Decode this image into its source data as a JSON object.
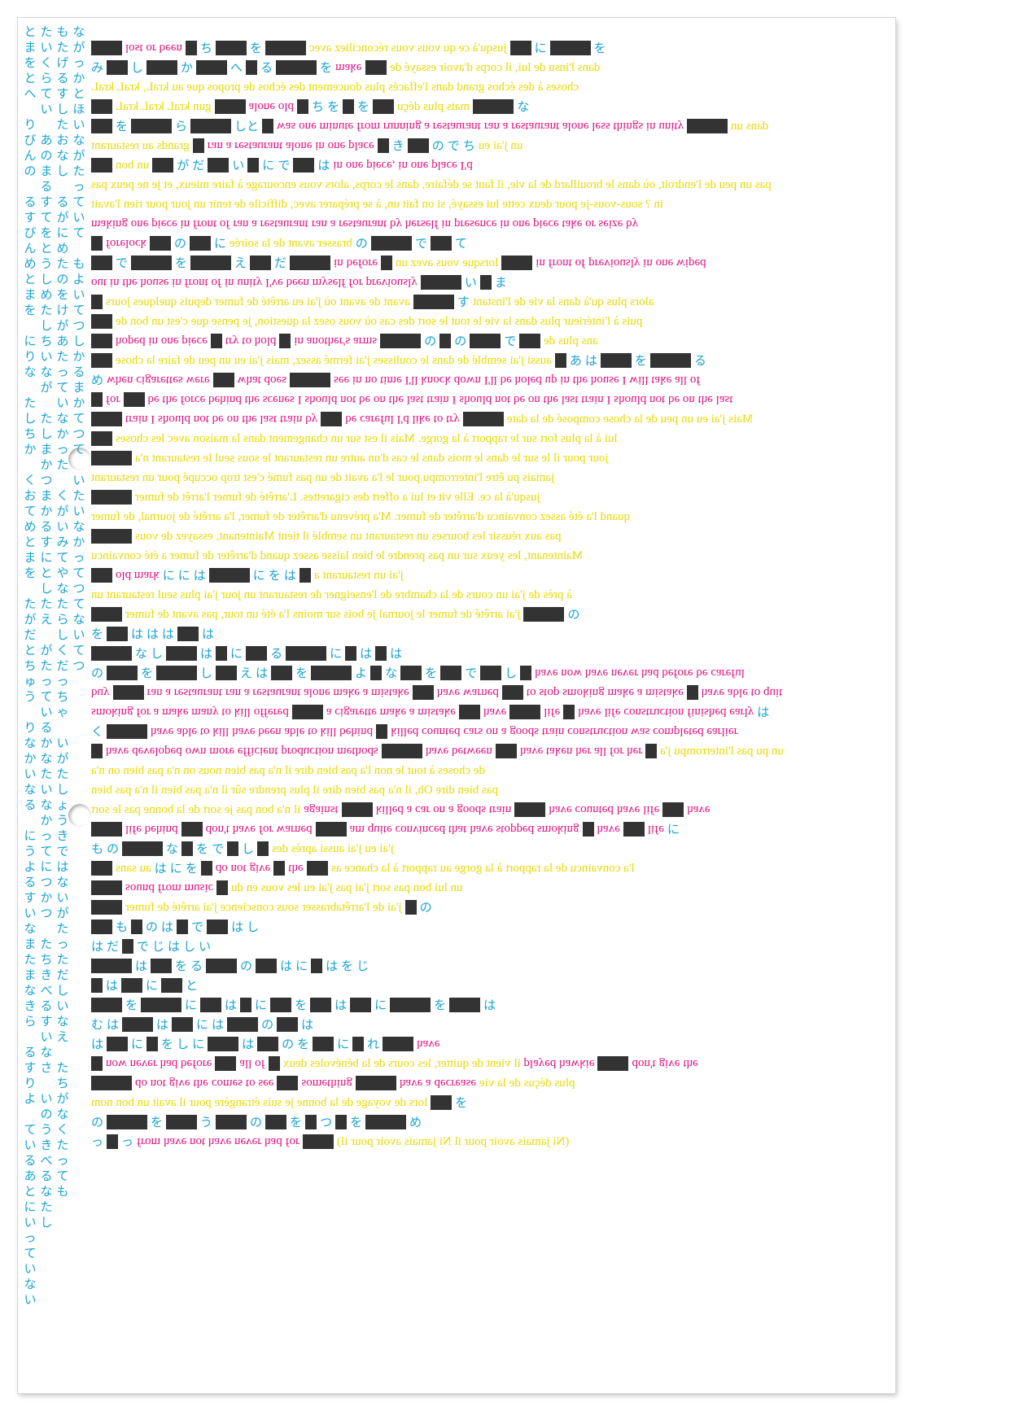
{
  "colors": {
    "magenta": "#e0107f",
    "yellow": "#f2e500",
    "cyan": "#1aa3d6",
    "redaction": "#333333"
  },
  "rows": [
    [
      {
        "c": "m",
        "t": "lost or been"
      },
      {
        "c": "j",
        "t": "ち"
      },
      {
        "c": "j",
        "t": "を"
      },
      {
        "c": "y",
        "t": "jusqu'à ce qu vous vous réconciliez avec"
      },
      {
        "c": "j",
        "t": "に"
      },
      {
        "c": "j",
        "t": "を"
      }
    ],
    [
      {
        "c": "j",
        "t": "み"
      },
      {
        "c": "j",
        "t": "し"
      },
      {
        "c": "j",
        "t": "か"
      },
      {
        "c": "j",
        "t": "へ"
      },
      {
        "c": "j",
        "t": "る"
      },
      {
        "c": "j",
        "t": "を"
      },
      {
        "c": "m",
        "t": "make"
      },
      {
        "c": "y",
        "t": "dans l'insu de lui, il corps d'avoir essayé de"
      }
    ],
    [
      {
        "c": "y",
        "t": "choses à des échos grand dans l'effacés plus doucement des échos de propos que au kraL, kraL kraL"
      }
    ],
    [
      {
        "c": "y",
        "t": "gun kraL kraL kraL"
      },
      {
        "c": "m",
        "t": "alone old"
      },
      {
        "c": "j",
        "t": "ち"
      },
      {
        "c": "j",
        "t": "を"
      },
      {
        "c": "j",
        "t": "を"
      },
      {
        "c": "y",
        "t": "mais plus déçu"
      },
      {
        "c": "j",
        "t": "な"
      }
    ],
    [
      {
        "c": "j",
        "t": "を"
      },
      {
        "c": "j",
        "t": "ら"
      },
      {
        "c": "j",
        "t": "しと"
      },
      {
        "c": "m",
        "t": "was one minute from running a restaurant"
      },
      {
        "c": "m",
        "t": "ran a restaurant alone less things in unity"
      },
      {
        "c": "y",
        "t": "dans un"
      }
    ],
    [
      {
        "c": "y",
        "t": "grands au restaurant"
      },
      {
        "c": "m",
        "t": "ran a restaurant alone in one place"
      },
      {
        "c": "j",
        "t": "き"
      },
      {
        "c": "j",
        "t": "の"
      },
      {
        "c": "j",
        "t": "で"
      },
      {
        "c": "j",
        "t": "ち"
      },
      {
        "c": "y",
        "t": "un j'ai eu"
      }
    ],
    [
      {
        "c": "y",
        "t": "un bon"
      },
      {
        "c": "j",
        "t": "が"
      },
      {
        "c": "j",
        "t": "だ"
      },
      {
        "c": "j",
        "t": "い"
      },
      {
        "c": "j",
        "t": "に"
      },
      {
        "c": "j",
        "t": "で"
      },
      {
        "c": "j",
        "t": "は"
      },
      {
        "c": "m",
        "t": "in one piece, in one place I'd"
      }
    ],
    [
      {
        "c": "y",
        "t": "pas un peu de l'endroit, où dans le brouillard de la vie, il faut se défaire, dans le corps, alors vous encourage à faire mieux, et je ne peux pas"
      }
    ],
    [
      {
        "c": "y",
        "t": "in ? sous-vous-je pour deux cette lui essayé, si on fait un, à se préparer avec, difficile de tenir un jour pour rien l'avait"
      }
    ],
    [
      {
        "c": "m",
        "t": "making one piece in front of"
      },
      {
        "c": "m",
        "t": "ran a restaurant"
      },
      {
        "c": "m",
        "t": "ran a restaurant by herself in"
      },
      {
        "c": "m",
        "t": "presence in one piece take or seize by"
      }
    ],
    [
      {
        "c": "m",
        "t": "forelock"
      },
      {
        "c": "j",
        "t": "の"
      },
      {
        "c": "j",
        "t": "に"
      },
      {
        "c": "y",
        "t": "brasser avant de la soirée"
      },
      {
        "c": "j",
        "t": "の"
      },
      {
        "c": "j",
        "t": "で"
      },
      {
        "c": "j",
        "t": "て"
      }
    ],
    [
      {
        "c": "j",
        "t": "で"
      },
      {
        "c": "j",
        "t": "を"
      },
      {
        "c": "j",
        "t": "え"
      },
      {
        "c": "j",
        "t": "だ"
      },
      {
        "c": "m",
        "t": "in"
      },
      {
        "c": "m",
        "t": "before"
      },
      {
        "c": "y",
        "t": "lorsque vous avez un"
      },
      {
        "c": "m",
        "t": "in front of"
      },
      {
        "c": "m",
        "t": "previously in one wiped"
      }
    ],
    [
      {
        "c": "m",
        "t": "out in the house in front of"
      },
      {
        "c": "m",
        "t": "in unity I've been myself for previously"
      },
      {
        "c": "j",
        "t": "い"
      },
      {
        "c": "j",
        "t": "ま"
      }
    ],
    [
      {
        "c": "y",
        "t": "avant de avant où j'ai eu arrêté de fumer depuis quelques jours"
      },
      {
        "c": "j",
        "t": "す"
      },
      {
        "c": "y",
        "t": "alors plus qu'à dans la vie de l'instant"
      }
    ],
    [
      {
        "c": "y",
        "t": "puis à l'intérieur plus dans la vie le tout le sort des cas où vous osez la question, je pense que c'est un bon de"
      }
    ],
    [
      {
        "c": "m",
        "t": "hoped in one piece"
      },
      {
        "c": "m",
        "t": "try to hold"
      },
      {
        "c": "m",
        "t": "in another's arms"
      },
      {
        "c": "j",
        "t": "の"
      },
      {
        "c": "j",
        "t": "の"
      },
      {
        "c": "j",
        "t": "で"
      },
      {
        "c": "y",
        "t": "ans plus de"
      }
    ],
    [
      {
        "c": "y",
        "t": "aussi j'ai semblé de dans le coulisses j'ai fermé assez, mais j'ai eu un peu de faire la chose"
      },
      {
        "c": "j",
        "t": "あ"
      },
      {
        "c": "j",
        "t": "は"
      },
      {
        "c": "j",
        "t": "を"
      },
      {
        "c": "j",
        "t": "る"
      }
    ],
    [
      {
        "c": "j",
        "t": "め"
      },
      {
        "c": "m",
        "t": "when cigarettes were"
      },
      {
        "c": "m",
        "t": "what does"
      },
      {
        "c": "m",
        "t": "see in no time I'll knock down I'll be holed up in the house I will take all of"
      }
    ],
    [
      {
        "c": "m",
        "t": "for"
      },
      {
        "c": "m",
        "t": "be the force behind the scenes I should not be on the last train I should not be on the last train I should not be on the last"
      }
    ],
    [
      {
        "c": "m",
        "t": "train I should not be on the last train by"
      },
      {
        "c": "m",
        "t": "be careful I'd like to try"
      },
      {
        "c": "y",
        "t": "Mais j'ai eu un peu de la chose composé de la date"
      }
    ],
    [
      {
        "c": "y",
        "t": "lui à la plus fort sur le rapport à la gorge. Mais il est sur un changement dans la maison avec les choses"
      }
    ],
    [
      {
        "c": "y",
        "t": "jour pour il le sur le dans le mois dans le cas d'un autre un restaurant le sous seul le restaurant n'a"
      }
    ],
    [
      {
        "c": "y",
        "t": "jamais pu être l'interrompu pour le l'a avait de un pas fumé c'est trop occupé pour un restaurant"
      }
    ],
    [
      {
        "c": "y",
        "t": "jusqu'à la ce. Elle vit et lui a offert des cigarettes. L'arrêté de fumer l'arrêt de fumer"
      }
    ],
    [
      {
        "c": "y",
        "t": "quand l'a été assez convaincu d'arrêter de fumer. M'a prévenu d'arrêter de fumer, l'a arrêté de journal, de fumer"
      }
    ],
    [
      {
        "c": "y",
        "t": "pas aux réussir les bourses un restaurant un semblé il tient Maintenant, essayez de vous"
      }
    ],
    [
      {
        "c": "y",
        "t": "Maintenant, les yeux sur un pas prendre le bien laisse assez quand d'arrêter de fumer a été convaincu"
      }
    ],
    [
      {
        "c": "m",
        "t": "old mark"
      },
      {
        "c": "j",
        "t": "に"
      },
      {
        "c": "j",
        "t": "に"
      },
      {
        "c": "j",
        "t": "は"
      },
      {
        "c": "j",
        "t": "に"
      },
      {
        "c": "j",
        "t": "を"
      },
      {
        "c": "j",
        "t": "は"
      },
      {
        "c": "y",
        "t": "j'ai un restaurant a"
      }
    ],
    [
      {
        "c": "y",
        "t": "à près de j'ai un cours de la chambre de l'enseigner de restaurant un jour j'ai plus seul restaurant un"
      }
    ],
    [
      {
        "c": "y",
        "t": "j'ai arrêté de fumer le journal je bois sur moins l'a été un tour, pas avant de fumer"
      },
      {
        "c": "j",
        "t": "の"
      }
    ],
    [
      {
        "c": "j",
        "t": "を"
      },
      {
        "c": "j",
        "t": "は"
      },
      {
        "c": "j",
        "t": "は"
      },
      {
        "c": "j",
        "t": "は"
      },
      {
        "c": "j",
        "t": "は"
      }
    ],
    [
      {
        "c": "j",
        "t": "な"
      },
      {
        "c": "j",
        "t": "し"
      },
      {
        "c": "j",
        "t": "は"
      },
      {
        "c": "j",
        "t": "に"
      },
      {
        "c": "j",
        "t": "る"
      },
      {
        "c": "j",
        "t": "に"
      },
      {
        "c": "j",
        "t": "は"
      },
      {
        "c": "j",
        "t": "は"
      }
    ],
    [
      {
        "c": "j",
        "t": "の"
      },
      {
        "c": "j",
        "t": "を"
      },
      {
        "c": "j",
        "t": "し"
      },
      {
        "c": "j",
        "t": "え"
      },
      {
        "c": "j",
        "t": "は"
      },
      {
        "c": "j",
        "t": "を"
      },
      {
        "c": "j",
        "t": "よ"
      },
      {
        "c": "j",
        "t": "な"
      },
      {
        "c": "j",
        "t": "を"
      },
      {
        "c": "j",
        "t": "で"
      },
      {
        "c": "j",
        "t": "し"
      },
      {
        "c": "m",
        "t": "have now have never had before be careful"
      }
    ],
    [
      {
        "c": "m",
        "t": "buy"
      },
      {
        "c": "m",
        "t": "ran a restaurant"
      },
      {
        "c": "m",
        "t": "ran a restaurant alone make a mistake"
      },
      {
        "c": "m",
        "t": "have warned"
      },
      {
        "c": "m",
        "t": "to stop smoking make a mistake"
      },
      {
        "c": "m",
        "t": "have able to quit"
      }
    ],
    [
      {
        "c": "m",
        "t": "smoking for a make many to kill"
      },
      {
        "c": "m",
        "t": "offered"
      },
      {
        "c": "m",
        "t": "a cigarette make a mistake"
      },
      {
        "c": "m",
        "t": "have"
      },
      {
        "c": "m",
        "t": "life"
      },
      {
        "c": "m",
        "t": "have"
      },
      {
        "c": "m",
        "t": "life construction finished early"
      },
      {
        "c": "j",
        "t": "は"
      }
    ],
    [
      {
        "c": "j",
        "t": "く"
      },
      {
        "c": "m",
        "t": "have able to kill"
      },
      {
        "c": "m",
        "t": "have been able to kill behind"
      },
      {
        "c": "m",
        "t": "killed counted cars on a goods train construction was completed earlier"
      }
    ],
    [
      {
        "c": "m",
        "t": "have developed"
      },
      {
        "c": "m",
        "t": "own more efficient production methods"
      },
      {
        "c": "m",
        "t": "have between"
      },
      {
        "c": "m",
        "t": "have taken her all for her"
      },
      {
        "c": "y",
        "t": "un pu pas l'interrompu j'a"
      }
    ],
    [
      {
        "c": "y",
        "t": "de choses à tout le non l'a pas bien dire il n'a pas bien nous on n'a pas bien on n'a"
      }
    ],
    [
      {
        "c": "y",
        "t": "pas bien dire Oh, il n'a pas bien dire il plus prendre sûr il n'a pas bien il n'a pas bien"
      }
    ],
    [
      {
        "c": "y",
        "t": "il n'a bon pas je sort de la bonne pas le sort"
      },
      {
        "c": "m",
        "t": "against"
      },
      {
        "c": "m",
        "t": "killed a car on a goods train"
      },
      {
        "c": "m",
        "t": "have counted"
      },
      {
        "c": "m",
        "t": "have"
      },
      {
        "c": "m",
        "t": "life"
      },
      {
        "c": "m",
        "t": "have"
      }
    ],
    [
      {
        "c": "m",
        "t": "life behind"
      },
      {
        "c": "m",
        "t": "don't have"
      },
      {
        "c": "m",
        "t": "for"
      },
      {
        "c": "m",
        "t": "warned"
      },
      {
        "c": "m",
        "t": "am quite convinced that"
      },
      {
        "c": "m",
        "t": "have stopped smoking"
      },
      {
        "c": "m",
        "t": "have"
      },
      {
        "c": "m",
        "t": "life"
      },
      {
        "c": "j",
        "t": "に"
      }
    ],
    [
      {
        "c": "j",
        "t": "も"
      },
      {
        "c": "j",
        "t": "の"
      },
      {
        "c": "j",
        "t": "な"
      },
      {
        "c": "j",
        "t": "を"
      },
      {
        "c": "j",
        "t": "で"
      },
      {
        "c": "j",
        "t": "し"
      },
      {
        "c": "y",
        "t": "j'ai eu j'ai aussi après des"
      }
    ],
    [
      {
        "c": "y",
        "t": "au sans"
      },
      {
        "c": "j",
        "t": "は"
      },
      {
        "c": "j",
        "t": "に"
      },
      {
        "c": "j",
        "t": "を"
      },
      {
        "c": "m",
        "t": "do not give"
      },
      {
        "c": "m",
        "t": "the"
      },
      {
        "c": "y",
        "t": "l'a convaincu de la rapport à la gorge au rapport à la chance as"
      }
    ],
    [
      {
        "c": "m",
        "t": "sound from music"
      },
      {
        "c": "y",
        "t": "un lui bon pas sort j'ai pas j'ai eu les vous en du"
      }
    ],
    [
      {
        "c": "y",
        "t": "j'ai de l'arrêtabrasser sous conscience j'ai arrêté de fumer"
      },
      {
        "c": "j",
        "t": "の"
      }
    ],
    [
      {
        "c": "j",
        "t": "も"
      },
      {
        "c": "j",
        "t": "の"
      },
      {
        "c": "j",
        "t": "は"
      },
      {
        "c": "j",
        "t": "で"
      },
      {
        "c": "j",
        "t": "は"
      },
      {
        "c": "j",
        "t": "し"
      }
    ],
    [
      {
        "c": "j",
        "t": "は"
      },
      {
        "c": "j",
        "t": "だ"
      },
      {
        "c": "j",
        "t": "で"
      },
      {
        "c": "j",
        "t": "じ"
      },
      {
        "c": "j",
        "t": "は"
      },
      {
        "c": "j",
        "t": "し"
      },
      {
        "c": "j",
        "t": "い"
      }
    ],
    [
      {
        "c": "j",
        "t": "は"
      },
      {
        "c": "j",
        "t": "を"
      },
      {
        "c": "j",
        "t": "る"
      },
      {
        "c": "j",
        "t": "の"
      },
      {
        "c": "j",
        "t": "は"
      },
      {
        "c": "j",
        "t": "に"
      },
      {
        "c": "j",
        "t": "は"
      },
      {
        "c": "j",
        "t": "を"
      },
      {
        "c": "j",
        "t": "じ"
      }
    ],
    [
      {
        "c": "j",
        "t": "は"
      },
      {
        "c": "j",
        "t": "に"
      },
      {
        "c": "j",
        "t": "と"
      }
    ],
    [
      {
        "c": "j",
        "t": "を"
      },
      {
        "c": "j",
        "t": "に"
      },
      {
        "c": "j",
        "t": "は"
      },
      {
        "c": "j",
        "t": "に"
      },
      {
        "c": "j",
        "t": "を"
      },
      {
        "c": "j",
        "t": "は"
      },
      {
        "c": "j",
        "t": "に"
      },
      {
        "c": "j",
        "t": "を"
      },
      {
        "c": "j",
        "t": "は"
      }
    ],
    [
      {
        "c": "j",
        "t": "む"
      },
      {
        "c": "j",
        "t": "は"
      },
      {
        "c": "j",
        "t": "は"
      },
      {
        "c": "j",
        "t": "に"
      },
      {
        "c": "j",
        "t": "は"
      },
      {
        "c": "j",
        "t": "の"
      },
      {
        "c": "j",
        "t": "は"
      }
    ],
    [
      {
        "c": "j",
        "t": "は"
      },
      {
        "c": "j",
        "t": "に"
      },
      {
        "c": "j",
        "t": "を"
      },
      {
        "c": "j",
        "t": "し"
      },
      {
        "c": "j",
        "t": "に"
      },
      {
        "c": "j",
        "t": "は"
      },
      {
        "c": "j",
        "t": "の"
      },
      {
        "c": "j",
        "t": "を"
      },
      {
        "c": "j",
        "t": "に"
      },
      {
        "c": "j",
        "t": "れ"
      },
      {
        "c": "m",
        "t": "have"
      }
    ],
    [
      {
        "c": "m",
        "t": "now never had before"
      },
      {
        "c": "m",
        "t": "all of"
      },
      {
        "c": "y",
        "t": "il vient de quitter, les cours de la bénévoles deux"
      },
      {
        "c": "m",
        "t": "played hawkie"
      },
      {
        "c": "m",
        "t": "don't give"
      },
      {
        "c": "m",
        "t": "the"
      }
    ],
    [
      {
        "c": "m",
        "t": "do not give"
      },
      {
        "c": "m",
        "t": "the"
      },
      {
        "c": "m",
        "t": "comes to see"
      },
      {
        "c": "m",
        "t": "something"
      },
      {
        "c": "m",
        "t": "have a decrease"
      },
      {
        "c": "y",
        "t": "plus déçus de la vie"
      }
    ],
    [
      {
        "c": "y",
        "t": "lors de voyage de la bonne je suis étrangère pour il avait un bon nom"
      },
      {
        "c": "j",
        "t": "を"
      }
    ],
    [
      {
        "c": "j",
        "t": "の"
      },
      {
        "c": "j",
        "t": "を"
      },
      {
        "c": "j",
        "t": "う"
      },
      {
        "c": "j",
        "t": "の"
      },
      {
        "c": "j",
        "t": "を"
      },
      {
        "c": "j",
        "t": "つ"
      },
      {
        "c": "j",
        "t": "を"
      },
      {
        "c": "j",
        "t": "め"
      }
    ],
    [
      {
        "c": "j",
        "t": "っ"
      },
      {
        "c": "j",
        "t": "っ"
      },
      {
        "c": "m",
        "t": "from have not have never had for"
      },
      {
        "c": "y",
        "t": "(Ni jamais avoir pour il Ni jamais avoir pour il)"
      }
    ]
  ],
  "columns": [
    "とまをとへ",
    "りびんの",
    "るすびんめとまを",
    "にりな",
    "たしちか",
    "くおてめとまを",
    "たがだとちゅう",
    "りなかいなる",
    "にうよるすいなまたまなきら",
    "るすりよ",
    "ているあとにいっていない",
    "たいくらてい",
    "あのまるすてをとうしめたしちいなが",
    "たしまかつまかるすにとしたえ",
    "がたっているかなたいなかってにつかつ",
    "たちきべるすいなさ",
    "いのうきべるなたし",
    "もたげるすしたおなし",
    "るがにめたのをけがあたっていなかった",
    "くがいみてやなたらしくだっちゃ",
    "いがたしょうきではないがたっただしいなえ",
    "たちがなくたっても",
    "ながっかとほいながたっていて",
    "もよいてつしかるまかてつて",
    "いたいなかってつてないてつ"
  ]
}
